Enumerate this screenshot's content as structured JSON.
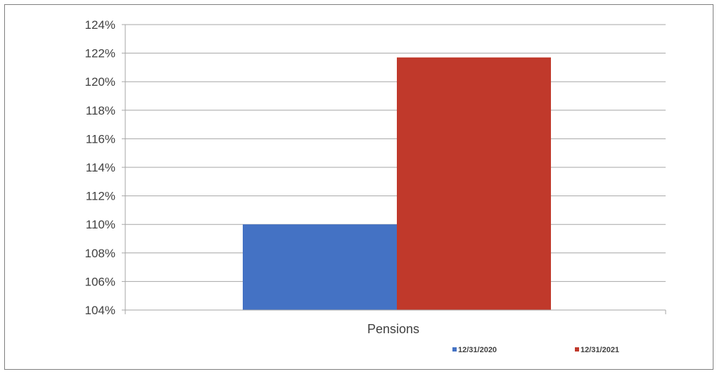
{
  "chart_data": {
    "type": "bar",
    "categories": [
      "Pensions"
    ],
    "series": [
      {
        "name": "12/31/2020",
        "values": [
          110.0
        ],
        "color": "#4472C4"
      },
      {
        "name": "12/31/2021",
        "values": [
          121.7
        ],
        "color": "#C0392B"
      }
    ],
    "ylim": [
      104,
      124
    ],
    "ytick_step": 2,
    "ytick_suffix": "%",
    "title": "",
    "xlabel": "",
    "ylabel": "",
    "grid": true,
    "legend_position": "bottom-right"
  }
}
